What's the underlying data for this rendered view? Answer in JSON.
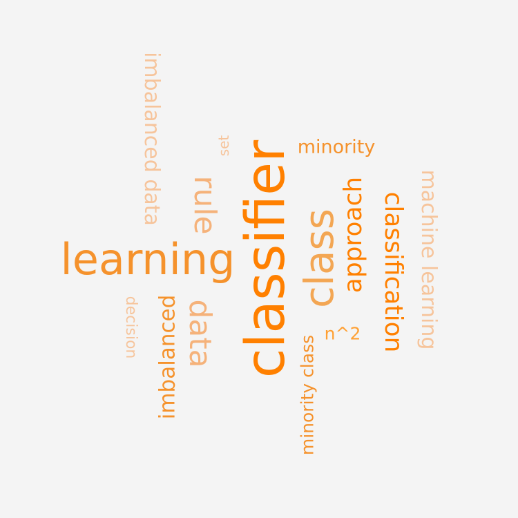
{
  "words": [
    {
      "text": "classifier"
    },
    {
      "text": "learning"
    },
    {
      "text": "class"
    },
    {
      "text": "rule"
    },
    {
      "text": "data"
    },
    {
      "text": "approach"
    },
    {
      "text": "classification"
    },
    {
      "text": "imbalanced"
    },
    {
      "text": "imbalanced data"
    },
    {
      "text": "machine learning"
    },
    {
      "text": "minority"
    },
    {
      "text": "minority class"
    },
    {
      "text": "n^2"
    },
    {
      "text": "decision"
    },
    {
      "text": "set"
    }
  ],
  "colors": {
    "background": "#f4f4f4",
    "primary": "#ff8000",
    "secondary": "#f5922c",
    "light": "#f6c49b"
  }
}
